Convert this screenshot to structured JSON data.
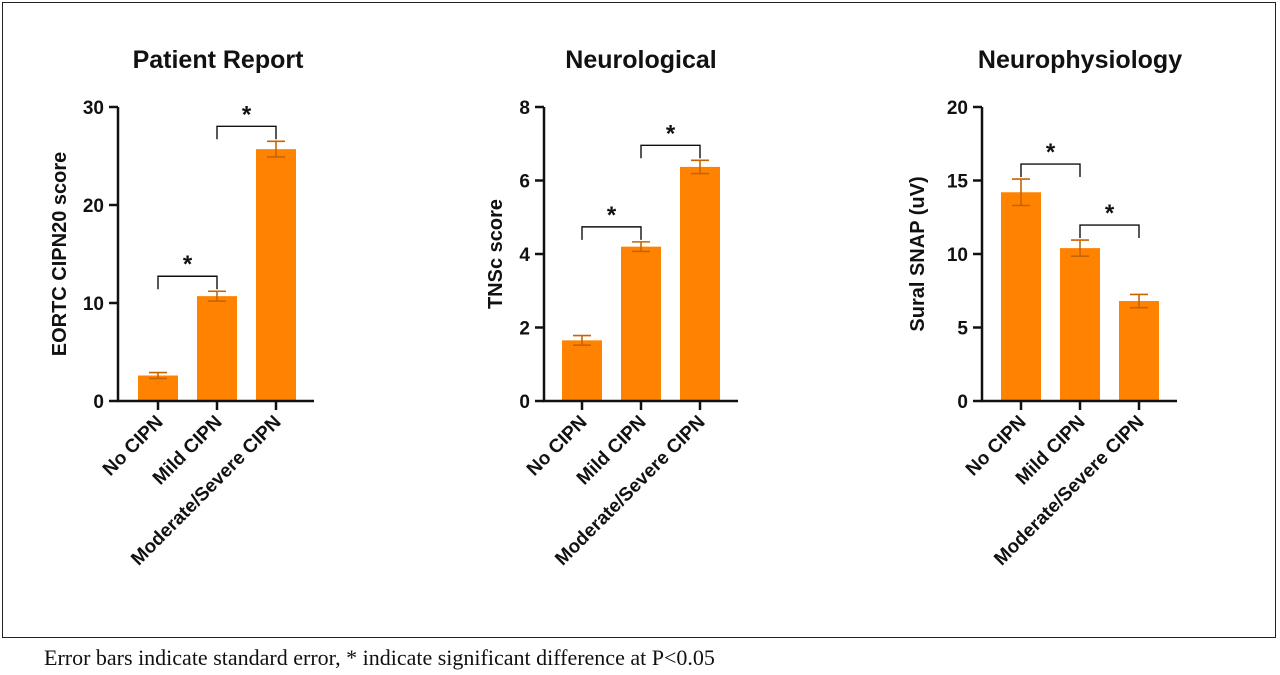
{
  "caption": "Error bars indicate standard error, * indicate significant difference at P<0.05",
  "colors": {
    "bar": "#FF8200",
    "error": "#C86400",
    "axis": "#111111"
  },
  "chart_data": [
    {
      "type": "bar",
      "title": "Patient Report",
      "ylabel": "EORTC CIPN20 score",
      "xlabel": "",
      "categories": [
        "No CIPN",
        "Mild CIPN",
        "Moderate/Severe CIPN"
      ],
      "values": [
        2.6,
        10.7,
        25.7
      ],
      "errors": [
        0.3,
        0.5,
        0.8
      ],
      "ylim": [
        0,
        30
      ],
      "yticks": [
        0,
        10,
        20,
        30
      ],
      "significance": [
        {
          "from": 0,
          "to": 1,
          "label": "*"
        },
        {
          "from": 1,
          "to": 2,
          "label": "*"
        }
      ]
    },
    {
      "type": "bar",
      "title": "Neurological",
      "ylabel": "TNSc score",
      "xlabel": "",
      "categories": [
        "No CIPN",
        "Mild CIPN",
        "Moderate/Severe CIPN"
      ],
      "values": [
        1.65,
        4.2,
        6.37
      ],
      "errors": [
        0.13,
        0.13,
        0.18
      ],
      "ylim": [
        0,
        8
      ],
      "yticks": [
        0,
        2,
        4,
        6,
        8
      ],
      "significance": [
        {
          "from": 0,
          "to": 1,
          "label": "*"
        },
        {
          "from": 1,
          "to": 2,
          "label": "*"
        }
      ]
    },
    {
      "type": "bar",
      "title": "Neurophysiology",
      "ylabel": "Sural  SNAP (uV)",
      "xlabel": "",
      "categories": [
        "No CIPN",
        "Mild CIPN",
        "Moderate/Severe CIPN"
      ],
      "values": [
        14.2,
        10.4,
        6.8
      ],
      "errors": [
        0.9,
        0.55,
        0.45
      ],
      "ylim": [
        0,
        20
      ],
      "yticks": [
        0,
        5,
        10,
        15,
        20
      ],
      "significance": [
        {
          "from": 0,
          "to": 1,
          "label": "*"
        },
        {
          "from": 1,
          "to": 2,
          "label": "*"
        }
      ]
    }
  ]
}
